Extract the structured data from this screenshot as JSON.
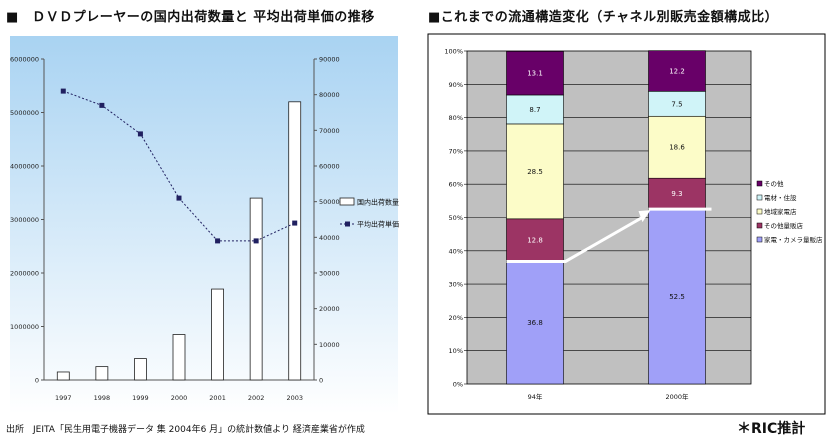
{
  "left_title": "■　ＤＶＤプレーヤーの国内出荷数量と 平均出荷単価の推移",
  "right_title": "■これまでの流通構造変化（チャネル別販売金額構成比）",
  "footnote": "出所　JEITA「民生用電子機器データ 集 2004年6 月」の統計数値より 経済産業省が作成",
  "credit": "＊RIC推計",
  "colors": {
    "left_bg_top": "#a9d3f2",
    "left_bg_bottom": "#ffffff",
    "bar_fill": "#ffffff",
    "bar_stroke": "#222222",
    "line": "#202060",
    "right_plot_bg": "#c0c0c0",
    "seg_1": "#a0a0f8",
    "seg_2": "#9c3464",
    "seg_3": "#fcfcc8",
    "seg_4": "#d0f4f8",
    "seg_5": "#680068",
    "arrow": "#ffffff"
  },
  "chart_data": [
    {
      "type": "bar",
      "title": "ＤＶＤプレーヤーの国内出荷数量と 平均出荷単価の推移",
      "categories": [
        "1997",
        "1998",
        "1999",
        "2000",
        "2001",
        "2002",
        "2003"
      ],
      "ylim": [
        0,
        6000000
      ],
      "y_ticks": [
        "0",
        "1000000",
        "2000000",
        "3000000",
        "4000000",
        "5000000",
        "6000000"
      ],
      "y2lim": [
        0,
        90000
      ],
      "y2_ticks": [
        "0",
        "10000",
        "20000",
        "30000",
        "40000",
        "50000",
        "60000",
        "70000",
        "80000",
        "90000"
      ],
      "series": [
        {
          "name": "国内出荷数量",
          "type": "bar",
          "axis": "left",
          "values": [
            150000,
            250000,
            400000,
            850000,
            1700000,
            3400000,
            5200000
          ]
        },
        {
          "name": "平均出荷単価",
          "type": "line",
          "axis": "right",
          "values": [
            81000,
            77000,
            69000,
            51000,
            39000,
            39000,
            44000
          ]
        }
      ],
      "legend": {
        "position": "right"
      }
    },
    {
      "type": "bar",
      "title": "これまでの流通構造変化（チャネル別販売金額構成比）",
      "stacked": true,
      "categories": [
        "94年",
        "2000年"
      ],
      "ylim": [
        0,
        100
      ],
      "y_ticks": [
        "0%",
        "10%",
        "20%",
        "30%",
        "40%",
        "50%",
        "60%",
        "70%",
        "80%",
        "90%",
        "100%"
      ],
      "series": [
        {
          "name": "家電・カメラ量販店",
          "values": [
            36.8,
            52.5
          ],
          "labels": [
            "36.8",
            "52.5"
          ]
        },
        {
          "name": "その他量販店",
          "values": [
            12.8,
            9.3
          ],
          "labels": [
            "12.8",
            "9.3"
          ]
        },
        {
          "name": "地域家電店",
          "values": [
            28.5,
            18.6
          ],
          "labels": [
            "28.5",
            "18.6"
          ]
        },
        {
          "name": "電材・住設",
          "values": [
            8.7,
            7.5
          ],
          "labels": [
            "8.7",
            "7.5"
          ]
        },
        {
          "name": "その他",
          "values": [
            13.1,
            12.2
          ],
          "labels": [
            "13.1",
            "12.2"
          ]
        }
      ],
      "legend": {
        "position": "right"
      }
    }
  ]
}
